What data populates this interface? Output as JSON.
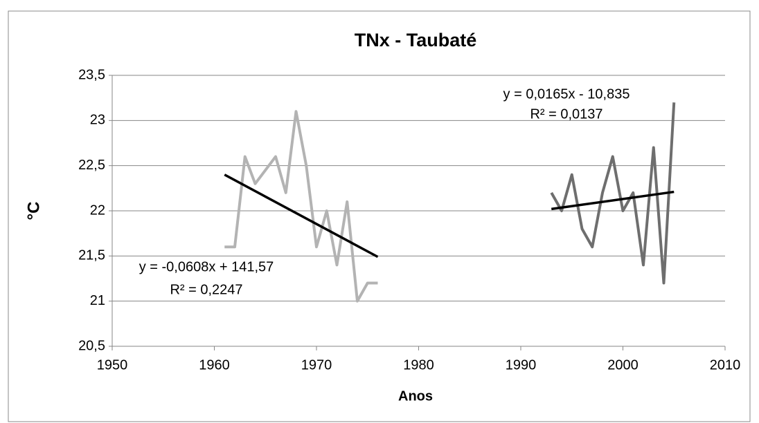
{
  "chart_data": {
    "type": "line",
    "title": "TNx - Taubaté",
    "x_label": "Anos",
    "y_label": "°C",
    "xlim": [
      1950,
      2010
    ],
    "xticks": [
      1950,
      1960,
      1970,
      1980,
      1990,
      2000,
      2010
    ],
    "ylim": [
      20.5,
      23.5
    ],
    "yticks": [
      {
        "value": 20.5,
        "label": "20,5"
      },
      21,
      {
        "value": 21.5,
        "label": "21,5"
      },
      22,
      {
        "value": 22.5,
        "label": "22,5"
      },
      23,
      {
        "value": 23.5,
        "label": "23,5"
      }
    ],
    "grid": true,
    "series": [
      {
        "color": "#b3b3b3",
        "x": [
          1961,
          1962,
          1963,
          1964,
          1965,
          1966,
          1967,
          1968,
          1969,
          1970,
          1971,
          1972,
          1973,
          1974,
          1975,
          1976
        ],
        "values": [
          21.6,
          21.6,
          22.6,
          22.3,
          22.45,
          22.6,
          22.2,
          23.1,
          22.5,
          21.6,
          22.0,
          21.4,
          22.1,
          21.0,
          21.2,
          21.2
        ]
      },
      {
        "color": "#6e6e6e",
        "x": [
          1993,
          1994,
          1995,
          1996,
          1997,
          1998,
          1999,
          2000,
          2001,
          2002,
          2003,
          2004,
          2005
        ],
        "values": [
          22.2,
          22.0,
          22.4,
          21.8,
          21.6,
          22.2,
          22.6,
          22.0,
          22.2,
          21.4,
          22.7,
          21.2,
          23.2
        ]
      }
    ],
    "trendlines": [
      {
        "color": "#000000",
        "x": [
          1961,
          1976
        ],
        "values": [
          22.4,
          21.49
        ],
        "equation": "y = -0,0608x + 141,57",
        "r2": "R² = 0,2247"
      },
      {
        "color": "#000000",
        "x": [
          1993,
          2005
        ],
        "values": [
          22.02,
          22.21
        ],
        "equation": "y = 0,0165x - 10,835",
        "r2": "R² = 0,0137"
      }
    ]
  }
}
